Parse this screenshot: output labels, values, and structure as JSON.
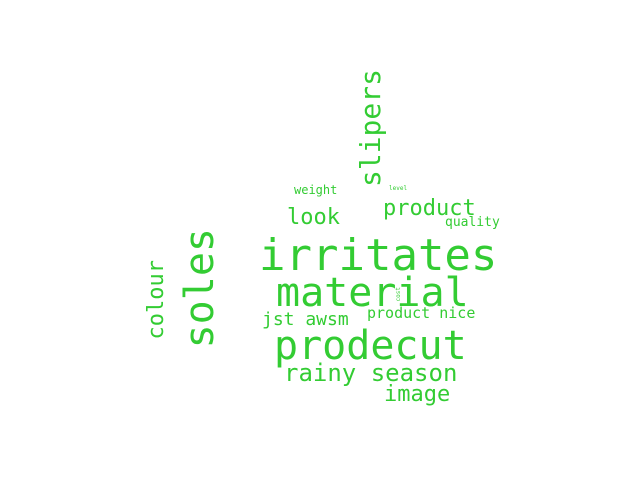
{
  "wordcloud": {
    "color": "#33cc33",
    "words": {
      "irritates": "irritates",
      "material": "material",
      "prodecut": "prodecut",
      "soles": "soles",
      "slipers": "slipers",
      "product": "product",
      "colour": "colour",
      "look": "look",
      "rainy_season": "rainy season",
      "image": "image",
      "jst_awsm": "jst awsm",
      "product_nice": "product nice",
      "quality": "quality",
      "weight": "weight",
      "level": "level",
      "cost": "cost"
    }
  }
}
